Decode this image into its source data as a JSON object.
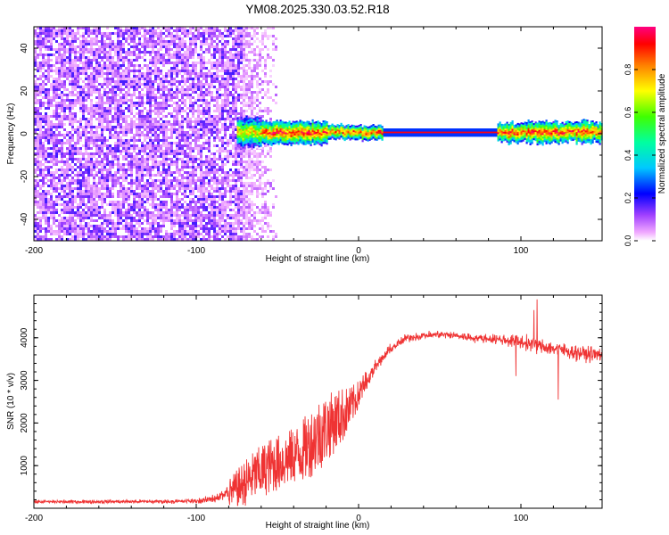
{
  "title": "YM08.2025.330.03.52.R18",
  "chart_data": [
    {
      "type": "heatmap",
      "name": "spectrogram",
      "xlabel": "Height of straight line (km)",
      "ylabel": "Frequency (Hz)",
      "xlim": [
        -200,
        150
      ],
      "ylim": [
        -50,
        50
      ],
      "xticks": [
        -200,
        -100,
        0,
        100
      ],
      "yticks": [
        -40,
        -20,
        0,
        20,
        40
      ],
      "colorbar": {
        "label": "Normalized spectral amplitude",
        "range": [
          0,
          1
        ],
        "ticks": [
          0.0,
          0.2,
          0.4,
          0.6,
          0.8
        ],
        "tick_labels": [
          "0.0",
          "0.2",
          "0.4",
          "0.6",
          "0.8"
        ]
      },
      "features": {
        "noise_region_x": [
          -200,
          -50
        ],
        "dense_noise_x": [
          -200,
          -72
        ],
        "signal_band_start_x": -75,
        "signal_center_hz": 1,
        "signal_band_end_x": 150,
        "clean_tone_x": [
          15,
          85
        ]
      }
    },
    {
      "type": "line",
      "name": "snr",
      "xlabel": "Height of straight line (km)",
      "ylabel": "SNR (10 * v/v)",
      "xlim": [
        -200,
        150
      ],
      "ylim": [
        0,
        5000
      ],
      "xticks": [
        -200,
        -100,
        0,
        100
      ],
      "yticks": [
        1000,
        2000,
        3000,
        4000
      ],
      "color": "#ef3333",
      "envelope": {
        "x": [
          -200,
          -110,
          -95,
          -85,
          -75,
          -65,
          -55,
          -45,
          -35,
          -25,
          -15,
          -5,
          0,
          10,
          20,
          30,
          40,
          50,
          60,
          70,
          80,
          90,
          100,
          110,
          120,
          130,
          140,
          150
        ],
        "y": [
          150,
          160,
          180,
          280,
          500,
          800,
          1050,
          1200,
          1400,
          1800,
          2100,
          2400,
          2700,
          3300,
          3750,
          4000,
          4050,
          4080,
          4050,
          4000,
          3980,
          3950,
          3900,
          3820,
          3750,
          3680,
          3620,
          3600
        ]
      },
      "spread": {
        "x": [
          -200,
          -100,
          -85,
          -70,
          -55,
          -40,
          -25,
          -10,
          0,
          20,
          40,
          80,
          100,
          150
        ],
        "y": [
          60,
          80,
          200,
          500,
          600,
          600,
          800,
          600,
          300,
          180,
          140,
          160,
          280,
          280
        ]
      },
      "spikes": [
        {
          "x": 110,
          "y": 4900
        },
        {
          "x": 108,
          "y": 4650
        },
        {
          "x": 123,
          "y": 2550
        },
        {
          "x": 97,
          "y": 3100
        }
      ]
    }
  ]
}
